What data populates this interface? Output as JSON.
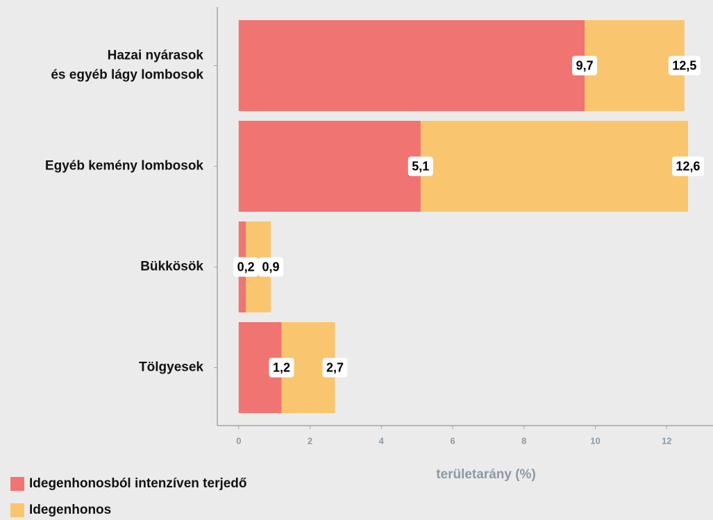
{
  "chart_data": {
    "type": "overlapped-hbar",
    "categories": [
      "Hazai nyárasok\nés egyéb lágy lombosok",
      "Egyéb kemény lombosok",
      "Bükkösök",
      "Tölgyesek"
    ],
    "series": [
      {
        "name": "Idegenhonos",
        "color": "#f9c56e",
        "values": [
          12.5,
          12.6,
          0.9,
          2.7
        ],
        "value_labels": [
          "12,5",
          "12,6",
          "0,9",
          "2,7"
        ]
      },
      {
        "name": "Idegenhonosból intenzíven terjedő",
        "color": "#f07472",
        "values": [
          9.7,
          5.1,
          0.2,
          1.2
        ],
        "value_labels": [
          "9,7",
          "5,1",
          "0,2",
          "1,2"
        ]
      }
    ],
    "legend_order": [
      1,
      0
    ],
    "x_label": "területarány (%)",
    "xlim": [
      -0.6,
      13.3
    ],
    "xticks": [
      0,
      2,
      4,
      6,
      8,
      10,
      12
    ]
  }
}
